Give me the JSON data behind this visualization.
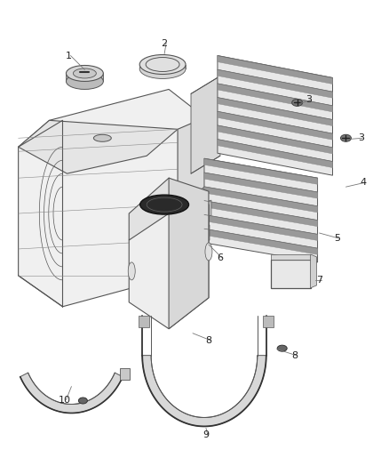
{
  "background_color": "#ffffff",
  "line_color": "#555555",
  "dark_color": "#333333",
  "figsize": [
    4.38,
    5.33
  ],
  "dpi": 100,
  "tank_face_color": "#f2f2f2",
  "tank_edge_color": "#555555",
  "shield_color": "#e8e8e8",
  "rib_dark": "#aaaaaa",
  "rib_light": "#f0f0f0"
}
